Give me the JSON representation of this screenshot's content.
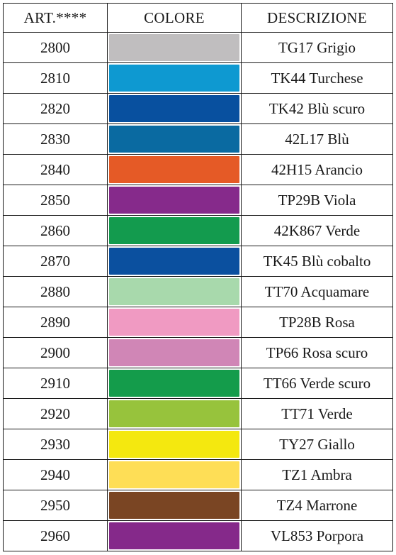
{
  "header": {
    "art": "ART.****",
    "colore": "COLORE",
    "descrizione": "DESCRIZIONE"
  },
  "rows": [
    {
      "art": "2800",
      "color": "#c0bebf",
      "descrizione": "TG17 Grigio"
    },
    {
      "art": "2810",
      "color": "#0e99d1",
      "descrizione": "TK44 Turchese"
    },
    {
      "art": "2820",
      "color": "#08509f",
      "descrizione": "TK42 Blù scuro"
    },
    {
      "art": "2830",
      "color": "#0a6aa1",
      "descrizione": "42L17 Blù"
    },
    {
      "art": "2840",
      "color": "#e55a26",
      "descrizione": "42H15 Arancio"
    },
    {
      "art": "2850",
      "color": "#862a8b",
      "descrizione": "TP29B Viola"
    },
    {
      "art": "2860",
      "color": "#139b4e",
      "descrizione": "42K867 Verde"
    },
    {
      "art": "2870",
      "color": "#0b509f",
      "descrizione": "TK45 Blù cobalto"
    },
    {
      "art": "2880",
      "color": "#a8d9ac",
      "descrizione": "TT70 Acquamare"
    },
    {
      "art": "2890",
      "color": "#f09ac2",
      "descrizione": "TP28B Rosa"
    },
    {
      "art": "2900",
      "color": "#d086b6",
      "descrizione": "TP66 Rosa scuro"
    },
    {
      "art": "2910",
      "color": "#149c4b",
      "descrizione": "TT66 Verde scuro"
    },
    {
      "art": "2920",
      "color": "#97c33c",
      "descrizione": "TT71 Verde"
    },
    {
      "art": "2930",
      "color": "#f4e80f",
      "descrizione": "TY27 Giallo"
    },
    {
      "art": "2940",
      "color": "#fede56",
      "descrizione": "TZ1 Ambra"
    },
    {
      "art": "2950",
      "color": "#7a4523",
      "descrizione": "TZ4 Marrone"
    },
    {
      "art": "2960",
      "color": "#85298a",
      "descrizione": "VL853 Porpora"
    }
  ]
}
